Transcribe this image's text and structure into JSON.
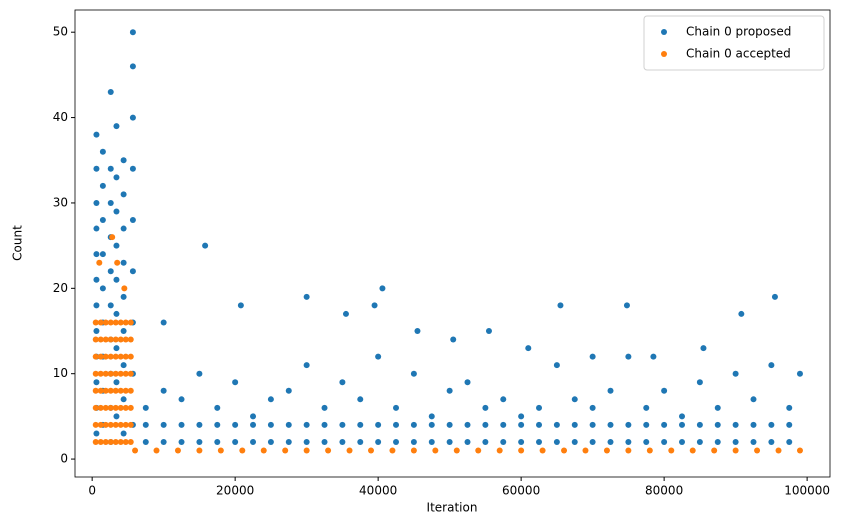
{
  "chart_data": {
    "type": "scatter",
    "xlabel": "Iteration",
    "ylabel": "Count",
    "xlim": [
      -2400,
      103200
    ],
    "ylim": [
      -2.1,
      52.6
    ],
    "xticks": [
      0,
      20000,
      40000,
      60000,
      80000,
      100000
    ],
    "yticks": [
      0,
      10,
      20,
      30,
      40,
      50
    ],
    "legend": "upper right",
    "series": [
      {
        "name": "Chain 0 proposed",
        "color": "#1f77b4",
        "x": [
          600,
          600,
          600,
          600,
          600,
          600,
          600,
          600,
          600,
          600,
          600,
          600,
          1500,
          1500,
          1500,
          1500,
          1500,
          1500,
          1500,
          1500,
          1500,
          2600,
          2600,
          2600,
          2600,
          2600,
          2600,
          2600,
          2600,
          2600,
          2600,
          3400,
          3400,
          3400,
          3400,
          3400,
          3400,
          3400,
          3400,
          3400,
          4400,
          4400,
          4400,
          4400,
          4400,
          4400,
          4400,
          4400,
          4400,
          5700,
          5700,
          5700,
          5700,
          5700,
          5700,
          5700,
          5700,
          5700,
          7500,
          7500,
          7500,
          10000,
          10000,
          10000,
          12500,
          12500,
          12500,
          15000,
          15000,
          15000,
          17500,
          17500,
          17500,
          20000,
          20000,
          20000,
          22500,
          22500,
          22500,
          25000,
          25000,
          25000,
          27500,
          27500,
          27500,
          30000,
          30000,
          30000,
          32500,
          32500,
          32500,
          35000,
          35000,
          35000,
          37500,
          37500,
          37500,
          40000,
          40000,
          40000,
          42500,
          42500,
          42500,
          45000,
          45000,
          45000,
          47500,
          47500,
          47500,
          50000,
          50000,
          50000,
          52500,
          52500,
          52500,
          55000,
          55000,
          55000,
          57500,
          57500,
          57500,
          60000,
          60000,
          60000,
          62500,
          62500,
          62500,
          65000,
          65000,
          65000,
          67500,
          67500,
          67500,
          70000,
          70000,
          70000,
          72500,
          72500,
          72500,
          75000,
          75000,
          75000,
          77500,
          77500,
          77500,
          80000,
          80000,
          80000,
          82500,
          82500,
          82500,
          85000,
          85000,
          85000,
          87500,
          87500,
          87500,
          90000,
          90000,
          90000,
          92500,
          92500,
          92500,
          95000,
          95000,
          95000,
          97500,
          97500,
          97500,
          10000,
          15800,
          20800,
          30000,
          35500,
          39500,
          40600,
          45500,
          50500,
          55500,
          61000,
          65500,
          70000,
          74800,
          78500,
          85500,
          90800,
          95500,
          99000
        ],
        "values": [
          3,
          6,
          9,
          12,
          15,
          18,
          21,
          24,
          27,
          30,
          34,
          38,
          4,
          8,
          12,
          16,
          20,
          24,
          28,
          32,
          36,
          2,
          6,
          10,
          14,
          18,
          22,
          26,
          30,
          34,
          43,
          5,
          9,
          13,
          17,
          21,
          25,
          29,
          33,
          39,
          3,
          7,
          11,
          15,
          19,
          23,
          27,
          31,
          35,
          4,
          10,
          16,
          22,
          28,
          34,
          40,
          46,
          50,
          2,
          4,
          6,
          2,
          4,
          8,
          2,
          4,
          7,
          2,
          4,
          10,
          2,
          4,
          6,
          2,
          4,
          9,
          2,
          4,
          5,
          2,
          4,
          7,
          2,
          4,
          8,
          2,
          4,
          11,
          2,
          4,
          6,
          2,
          4,
          9,
          2,
          4,
          7,
          2,
          4,
          12,
          2,
          4,
          6,
          2,
          4,
          10,
          2,
          4,
          5,
          2,
          4,
          8,
          2,
          4,
          9,
          2,
          4,
          6,
          2,
          4,
          7,
          2,
          4,
          5,
          2,
          4,
          6,
          2,
          4,
          11,
          2,
          4,
          7,
          2,
          4,
          6,
          2,
          4,
          8,
          2,
          4,
          12,
          2,
          4,
          6,
          2,
          4,
          8,
          2,
          4,
          5,
          2,
          4,
          9,
          2,
          4,
          6,
          2,
          4,
          10,
          2,
          4,
          7,
          2,
          4,
          11,
          2,
          4,
          6,
          16,
          25,
          18,
          19,
          17,
          18,
          20,
          15,
          14,
          15,
          13,
          18,
          12,
          18,
          12,
          13,
          17,
          19,
          10
        ]
      },
      {
        "name": "Chain 0 accepted",
        "color": "#ff7f0e",
        "x": [
          500,
          500,
          500,
          500,
          500,
          500,
          500,
          500,
          1200,
          1200,
          1200,
          1200,
          1200,
          1200,
          1200,
          1200,
          1900,
          1900,
          1900,
          1900,
          1900,
          1900,
          1900,
          1900,
          2600,
          2600,
          2600,
          2600,
          2600,
          2600,
          2600,
          2600,
          3300,
          3300,
          3300,
          3300,
          3300,
          3300,
          3300,
          3300,
          4000,
          4000,
          4000,
          4000,
          4000,
          4000,
          4000,
          4000,
          4700,
          4700,
          4700,
          4700,
          4700,
          4700,
          4700,
          4700,
          5400,
          5400,
          5400,
          5400,
          5400,
          5400,
          5400,
          5400,
          1000,
          2800,
          3500,
          4500,
          6000,
          9000,
          12000,
          15000,
          18000,
          21000,
          24000,
          27000,
          30000,
          33000,
          36000,
          39000,
          42000,
          45000,
          48000,
          51000,
          54000,
          57000,
          60000,
          63000,
          66000,
          69000,
          72000,
          75000,
          78000,
          81000,
          84000,
          87000,
          90000,
          93000,
          96000,
          99000
        ],
        "values": [
          2,
          4,
          6,
          8,
          10,
          12,
          14,
          16,
          2,
          4,
          6,
          8,
          10,
          12,
          14,
          16,
          2,
          4,
          6,
          8,
          10,
          12,
          14,
          16,
          2,
          4,
          6,
          8,
          10,
          12,
          14,
          16,
          2,
          4,
          6,
          8,
          10,
          12,
          14,
          16,
          2,
          4,
          6,
          8,
          10,
          12,
          14,
          16,
          2,
          4,
          6,
          8,
          10,
          12,
          14,
          16,
          2,
          4,
          6,
          8,
          10,
          12,
          14,
          16,
          23,
          26,
          23,
          20,
          1,
          1,
          1,
          1,
          1,
          1,
          1,
          1,
          1,
          1,
          1,
          1,
          1,
          1,
          1,
          1,
          1,
          1,
          1,
          1,
          1,
          1,
          1,
          1,
          1,
          1,
          1,
          1,
          1,
          1,
          1,
          1
        ]
      }
    ]
  }
}
